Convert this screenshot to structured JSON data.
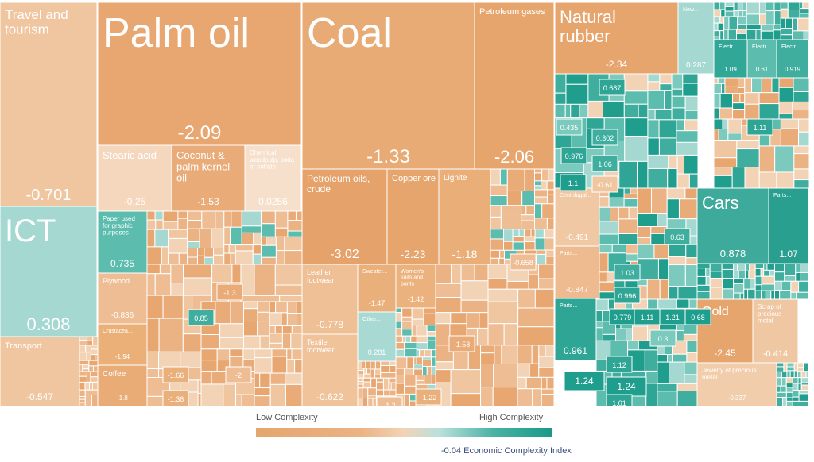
{
  "chart_data": {
    "type": "treemap",
    "color_scale": {
      "low_label": "Low Complexity",
      "high_label": "High Complexity",
      "marker_label": "-0.04 Economic Complexity Index",
      "marker_value": -0.04,
      "colors": [
        "#e6a56e",
        "#ebb283",
        "#f2d3b6",
        "#b9e1dc",
        "#4bb3a4",
        "#1a998a"
      ]
    },
    "tiles": [
      {
        "label": "Travel and tourism",
        "value": "-0.701",
        "color": "#f0c6a1"
      },
      {
        "label": "ICT",
        "value": "0.308",
        "color": "#a6d8d2"
      },
      {
        "label": "Transport",
        "value": "-0.547",
        "color": "#f0c6a1"
      },
      {
        "label": "Palm oil",
        "value": "-2.09",
        "color": "#e8a670"
      },
      {
        "label": "Stearic acid",
        "value": "-0.25",
        "color": "#f4d7bd"
      },
      {
        "label": "Coconut & palm kernel oil",
        "value": "-1.53",
        "color": "#e9ab78"
      },
      {
        "label": "Chemical woodpulp, soda or sulfate",
        "value": "0.0256",
        "color": "#f6e0cb"
      },
      {
        "label": "Paper used for graphic purposes",
        "value": "0.735",
        "color": "#5cbcae"
      },
      {
        "label": "Plywood",
        "value": "-0.836",
        "color": "#eebd94"
      },
      {
        "label": "Crustacea...",
        "value": "-1.94",
        "color": "#eab078"
      },
      {
        "label": "Coffee",
        "value": "-1.8",
        "color": "#e9ac77"
      },
      {
        "label": "Coal",
        "value": "-1.33",
        "color": "#e9ab76"
      },
      {
        "label": "Petroleum gases",
        "value": "-2.06",
        "color": "#e7a56e"
      },
      {
        "label": "Petroleum oils, crude",
        "value": "-3.02",
        "color": "#e5a26a"
      },
      {
        "label": "Copper ore",
        "value": "-2.23",
        "color": "#e7a56e"
      },
      {
        "label": "Lignite",
        "value": "-1.18",
        "color": "#eaae79"
      },
      {
        "label": "Leather footwear",
        "value": "-0.778",
        "color": "#efc096"
      },
      {
        "label": "Textile footwear",
        "value": "-0.622",
        "color": "#f0c39b"
      },
      {
        "label": "Sweater...",
        "value": "-1.47",
        "color": "#eab07c"
      },
      {
        "label": "Other...",
        "value": "0.281",
        "color": "#a8dad3"
      },
      {
        "label": "Women's suits and pants",
        "value": "-1.42",
        "color": "#ebb27e"
      },
      {
        "label": "Natural rubber",
        "value": "-2.34",
        "color": "#e7a56e"
      },
      {
        "label": "New...",
        "value": "0.287",
        "color": "#a6d8d2"
      },
      {
        "label": "Electr...",
        "value": "1.09",
        "color": "#31a797"
      },
      {
        "label": "Electr...",
        "value": "0.61",
        "color": "#5cbcae"
      },
      {
        "label": "Electr...",
        "value": "0.919",
        "color": "#3fae9f"
      },
      {
        "label": "Cars",
        "value": "0.878",
        "color": "#3daa9b"
      },
      {
        "label": "Parts...",
        "value": "1.07",
        "color": "#299f8f"
      },
      {
        "label": "Gold",
        "value": "-2.45",
        "color": "#e7a56e"
      },
      {
        "label": "Scrap of precious metal",
        "value": "-0.414",
        "color": "#f0c7a3"
      },
      {
        "label": "Jewelry of precious metal",
        "value": "-0.337",
        "color": "#f2cdab"
      },
      {
        "label": "Centrifugal...",
        "value": "-0.491",
        "color": "#f0c8a4"
      },
      {
        "label": "Parts...",
        "value": "-0.847",
        "color": "#eebb91"
      },
      {
        "label": "Parts...",
        "value": "0.961",
        "color": "#2fa596"
      }
    ],
    "extra_values": [
      "0.687",
      "0.435",
      "0.302",
      "0.976",
      "1.06",
      "1.1",
      "-0.61",
      "1.11",
      "-0.658",
      "0.63",
      "1.03",
      "0.996",
      "0.779",
      "1.11",
      "1.21",
      "0.68",
      "0.3",
      "1.12",
      "1.24",
      "1.01",
      "1.24",
      "0.85",
      "-1.3",
      "-2",
      "-1.66",
      "-1.36",
      "-1.58",
      "-1.2",
      "-1.22"
    ]
  }
}
